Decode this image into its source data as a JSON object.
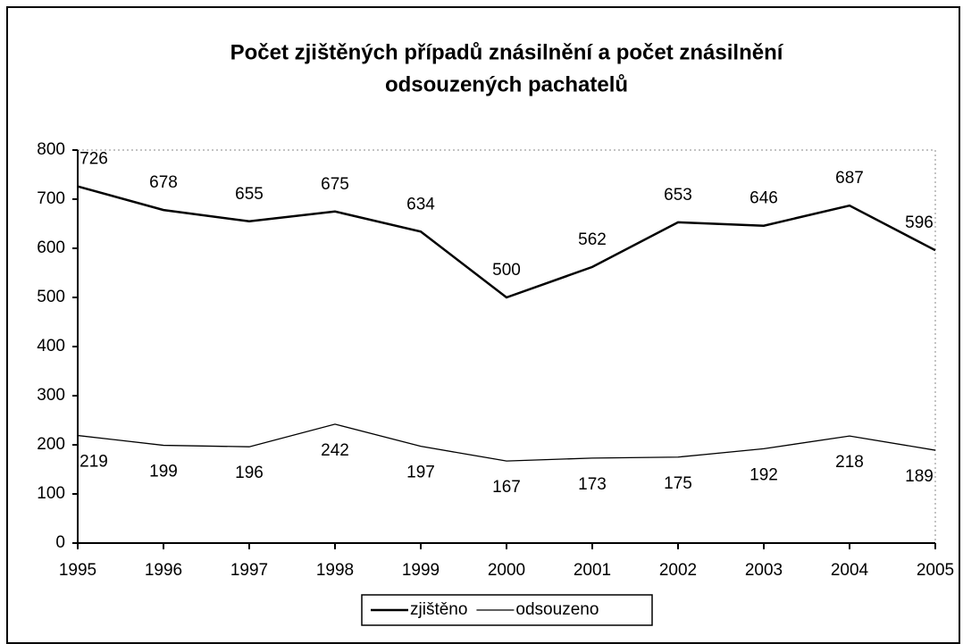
{
  "chart_data": {
    "type": "line",
    "title": [
      "Počet zjištěných případů znásilnění a počet znásilnění",
      "odsouzených pachatelů"
    ],
    "x": [
      1995,
      1996,
      1997,
      1998,
      1999,
      2000,
      2001,
      2002,
      2003,
      2004,
      2005
    ],
    "series": [
      {
        "name": "zjištěno",
        "color": "#000000",
        "values": [
          726,
          678,
          655,
          675,
          634,
          500,
          562,
          653,
          646,
          687,
          596
        ]
      },
      {
        "name": "odsouzeno",
        "color": "#000000",
        "values": [
          219,
          199,
          196,
          242,
          197,
          167,
          173,
          175,
          192,
          218,
          189
        ]
      }
    ],
    "xlim": [
      1995,
      2005
    ],
    "xticks": [
      1995,
      1996,
      1997,
      1998,
      1999,
      2000,
      2001,
      2002,
      2003,
      2004,
      2005
    ],
    "ylim": [
      0,
      800
    ],
    "yticks": [
      0,
      100,
      200,
      300,
      400,
      500,
      600,
      700,
      800
    ],
    "grid": false,
    "legend": "bottom"
  }
}
